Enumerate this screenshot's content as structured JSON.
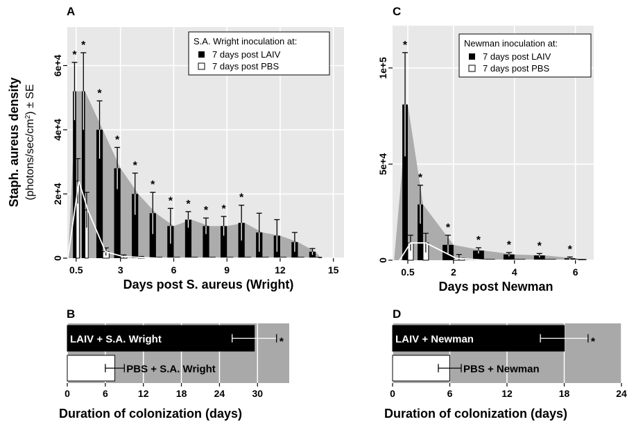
{
  "chart_data": [
    {
      "panel": "A",
      "type": "bar",
      "ylabel_main": "Staph. aureus density",
      "ylabel_sub_prefix": "(photons/sec/cm",
      "ylabel_sub_sup": "2",
      "ylabel_sub_suffix": ") ± SE",
      "xlabel": "Days post S. aureus (Wright)",
      "ylim": [
        0,
        72000
      ],
      "yticks": [
        0,
        20000,
        40000,
        60000
      ],
      "ytick_labels": [
        "0",
        "2e+4",
        "4e+4",
        "6e+4"
      ],
      "xticks": [
        0.5,
        3,
        6,
        9,
        12,
        15
      ],
      "xtick_labels": [
        "0.5",
        "3",
        "6",
        "9",
        "12",
        "15"
      ],
      "grid": true,
      "legend_title": "S.A. Wright inoculation at:",
      "legend_position": "top-right",
      "x": [
        0.5,
        1,
        2,
        3,
        4,
        5,
        6,
        7,
        8,
        9,
        10,
        11,
        12,
        13,
        14
      ],
      "series": [
        {
          "name": "7 days post LAIV",
          "color": "#000000",
          "values": [
            52000,
            52000,
            40000,
            28000,
            20000,
            14000,
            10000,
            12000,
            10000,
            10000,
            11000,
            8000,
            7000,
            5000,
            2000
          ],
          "errors": [
            9000,
            12000,
            9000,
            6500,
            6500,
            6500,
            5500,
            2500,
            2500,
            3000,
            5500,
            6000,
            5000,
            3000,
            1000
          ]
        },
        {
          "name": "7 days post PBS",
          "color": "#ffffff",
          "values": [
            24000,
            15000,
            2000,
            500,
            200,
            0,
            0,
            0,
            0,
            0,
            0,
            0,
            0,
            0,
            0
          ],
          "errors": [
            7000,
            5500,
            1200,
            500,
            300,
            0,
            0,
            0,
            0,
            0,
            0,
            0,
            0,
            0,
            0
          ]
        }
      ],
      "significant": [
        true,
        true,
        true,
        true,
        true,
        true,
        true,
        true,
        true,
        true,
        true,
        false,
        false,
        false,
        false
      ],
      "star": "*"
    },
    {
      "panel": "C",
      "type": "bar",
      "xlabel": "Days post Newman",
      "ylim": [
        0,
        122000
      ],
      "yticks": [
        0,
        50000,
        100000
      ],
      "ytick_labels": [
        "0",
        "5e+4",
        "1e+5"
      ],
      "xticks": [
        0.5,
        2,
        4,
        6
      ],
      "xtick_labels": [
        "0.5",
        "2",
        "4",
        "6"
      ],
      "grid": true,
      "legend_title": "Newman inoculation at:",
      "legend_position": "top-right",
      "x": [
        0.5,
        1,
        2,
        3,
        4,
        5,
        6
      ],
      "series": [
        {
          "name": "7 days post LAIV",
          "color": "#000000",
          "values": [
            81000,
            29000,
            8000,
            5000,
            3000,
            2500,
            1000
          ],
          "errors": [
            27000,
            10000,
            5000,
            1500,
            1000,
            1000,
            700
          ]
        },
        {
          "name": "7 days post PBS",
          "color": "#ffffff",
          "values": [
            9000,
            9000,
            1000,
            0,
            0,
            0,
            0
          ],
          "errors": [
            4000,
            5000,
            2000,
            0,
            0,
            0,
            0
          ]
        }
      ],
      "significant": [
        true,
        true,
        true,
        true,
        true,
        true,
        true
      ],
      "star": "*"
    },
    {
      "panel": "B",
      "type": "bar",
      "orientation": "horizontal",
      "xlabel": "Duration of colonization (days)",
      "xlim": [
        0,
        35
      ],
      "xticks": [
        0,
        6,
        12,
        18,
        24,
        30
      ],
      "categories": [
        "LAIV + S.A. Wright",
        "PBS + S.A. Wright"
      ],
      "values": [
        29.5,
        7.5
      ],
      "errors": [
        3.5,
        1.5
      ],
      "colors": [
        "#000000",
        "#ffffff"
      ],
      "significance_star": "*"
    },
    {
      "panel": "D",
      "type": "bar",
      "orientation": "horizontal",
      "xlabel": "Duration of colonization (days)",
      "xlim": [
        0,
        24
      ],
      "xticks": [
        0,
        6,
        12,
        18,
        24
      ],
      "categories": [
        "LAIV + Newman",
        "PBS + Newman"
      ],
      "values": [
        18,
        6
      ],
      "errors": [
        2.5,
        1.2
      ],
      "colors": [
        "#000000",
        "#ffffff"
      ],
      "significance_star": "*"
    }
  ],
  "colors": {
    "panel_bg": "#e8e8e8",
    "band": "#a9a9a9",
    "grid": "#ffffff",
    "bar_dark": "#000000",
    "bar_light": "#ffffff"
  }
}
